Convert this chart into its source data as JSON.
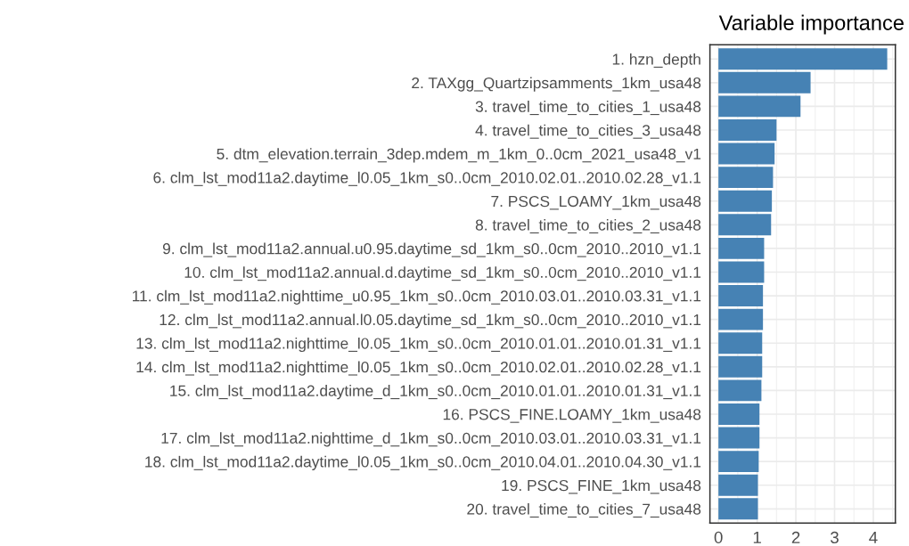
{
  "chart_data": {
    "type": "bar",
    "orientation": "horizontal",
    "title": "Variable importance",
    "categories": [
      "1. hzn_depth",
      "2. TAXgg_Quartzipsamments_1km_usa48",
      "3. travel_time_to_cities_1_usa48",
      "4. travel_time_to_cities_3_usa48",
      "5. dtm_elevation.terrain_3dep.mdem_m_1km_0..0cm_2021_usa48_v1",
      "6. clm_lst_mod11a2.daytime_l0.05_1km_s0..0cm_2010.02.01..2010.02.28_v1.1",
      "7. PSCS_LOAMY_1km_usa48",
      "8. travel_time_to_cities_2_usa48",
      "9. clm_lst_mod11a2.annual.u0.95.daytime_sd_1km_s0..0cm_2010..2010_v1.1",
      "10. clm_lst_mod11a2.annual.d.daytime_sd_1km_s0..0cm_2010..2010_v1.1",
      "11. clm_lst_mod11a2.nighttime_u0.95_1km_s0..0cm_2010.03.01..2010.03.31_v1.1",
      "12. clm_lst_mod11a2.annual.l0.05.daytime_sd_1km_s0..0cm_2010..2010_v1.1",
      "13. clm_lst_mod11a2.nighttime_l0.05_1km_s0..0cm_2010.01.01..2010.01.31_v1.1",
      "14. clm_lst_mod11a2.nighttime_l0.05_1km_s0..0cm_2010.02.01..2010.02.28_v1.1",
      "15. clm_lst_mod11a2.daytime_d_1km_s0..0cm_2010.01.01..2010.01.31_v1.1",
      "16. PSCS_FINE.LOAMY_1km_usa48",
      "17. clm_lst_mod11a2.nighttime_d_1km_s0..0cm_2010.03.01..2010.03.31_v1.1",
      "18. clm_lst_mod11a2.daytime_l0.05_1km_s0..0cm_2010.04.01..2010.04.30_v1.1",
      "19. PSCS_FINE_1km_usa48",
      "20. travel_time_to_cities_7_usa48"
    ],
    "values": [
      4.36,
      2.38,
      2.12,
      1.5,
      1.45,
      1.41,
      1.38,
      1.36,
      1.18,
      1.18,
      1.15,
      1.15,
      1.13,
      1.13,
      1.11,
      1.06,
      1.06,
      1.04,
      1.02,
      1.02
    ],
    "color": "#4682b4",
    "xlim": [
      -0.22,
      4.57
    ],
    "xticks": [
      0,
      1,
      2,
      3,
      4
    ],
    "grid": true,
    "legend": false
  }
}
